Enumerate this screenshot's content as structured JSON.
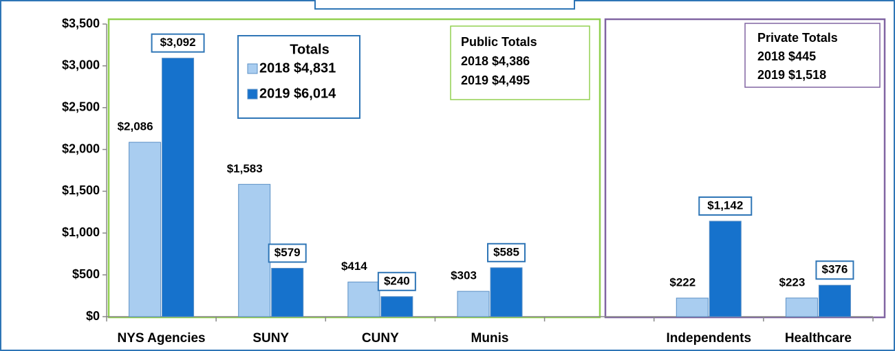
{
  "chart_data": {
    "type": "bar",
    "categories": [
      "NYS Agencies",
      "SUNY",
      "CUNY",
      "Munis",
      null,
      "Independents",
      "Healthcare"
    ],
    "series": [
      {
        "name": "2018 $4,831",
        "color": "#a9cdf0",
        "values": [
          2086,
          1583,
          414,
          303,
          null,
          222,
          223
        ],
        "value_labels": [
          "$2,086",
          "$1,583",
          "$414",
          "$303",
          null,
          "$222",
          "$223"
        ]
      },
      {
        "name": "2019 $6,014",
        "color": "#1672cc",
        "values": [
          3092,
          579,
          240,
          585,
          null,
          1142,
          376
        ],
        "value_labels": [
          "$3,092",
          "$579",
          "$240",
          "$585",
          null,
          "$1,142",
          "$376"
        ]
      }
    ],
    "legend_title": "Totals",
    "public_totals": [
      "Public Totals",
      "2018 $4,386",
      "2019 $4,495"
    ],
    "private_totals": [
      "Private Totals",
      "2018 $445",
      "2019 $1,518"
    ],
    "ylim": [
      0,
      3500
    ],
    "yticks": [
      {
        "value": 0,
        "label": "$0"
      },
      {
        "value": 500,
        "label": "$500"
      },
      {
        "value": 1000,
        "label": "$1,000"
      },
      {
        "value": 1500,
        "label": "$1,500"
      },
      {
        "value": 2000,
        "label": "$2,000"
      },
      {
        "value": 2500,
        "label": "$2,500"
      },
      {
        "value": 3000,
        "label": "$3,000"
      },
      {
        "value": 3500,
        "label": "$3,500"
      }
    ]
  }
}
